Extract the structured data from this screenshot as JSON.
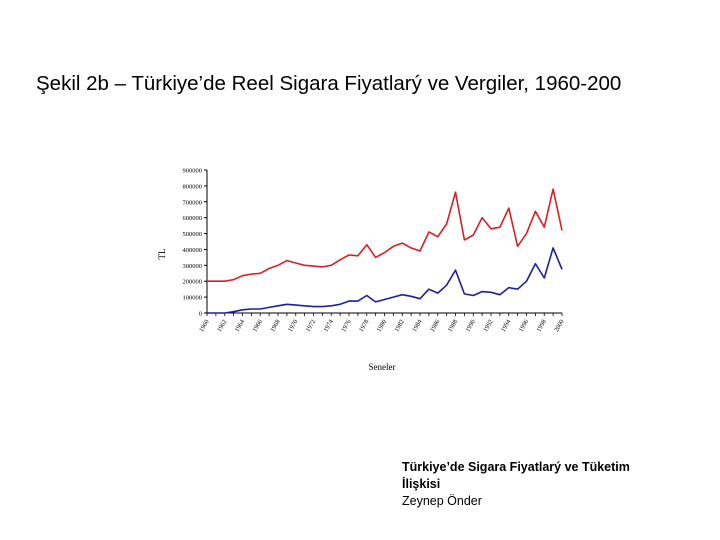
{
  "slide": {
    "title": "Şekil 2b – Türkiye’de Reel Sigara Fiyatlarý ve Vergiler, 1960-200"
  },
  "footer": {
    "line1": "Türkiye’de Sigara Fiyatlarý ve Tüketim",
    "line2": "İlişkisi",
    "author": "Zeynep Önder"
  },
  "colors": {
    "price_series": "#d42027",
    "tax_series": "#1f1f99",
    "axis": "#000000"
  },
  "chart_data": {
    "type": "line",
    "ylabel": "TL",
    "xlabel": "Seneler",
    "ylim": [
      0,
      900000
    ],
    "y_ticks": [
      0,
      100000,
      200000,
      300000,
      400000,
      500000,
      600000,
      700000,
      800000,
      900000
    ],
    "y_tick_labels": [
      "0",
      "100000",
      "200000",
      "300000",
      "400000",
      "500000",
      "600000",
      "700000",
      "800000",
      "900000"
    ],
    "xlim": [
      1960,
      2000
    ],
    "x_tick_labels": [
      "1960",
      "1962",
      "1964",
      "1966",
      "1968",
      "1970",
      "1972",
      "1974",
      "1976",
      "1978",
      "1980",
      "1982",
      "1984",
      "1986",
      "1988",
      "1990",
      "1992",
      "1994",
      "1996",
      "1998",
      "2000"
    ],
    "grid": false,
    "legend": "none",
    "x": [
      1960,
      1961,
      1962,
      1963,
      1964,
      1965,
      1966,
      1967,
      1968,
      1969,
      1970,
      1971,
      1972,
      1973,
      1974,
      1975,
      1976,
      1977,
      1978,
      1979,
      1980,
      1981,
      1982,
      1983,
      1984,
      1985,
      1986,
      1987,
      1988,
      1989,
      1990,
      1991,
      1992,
      1993,
      1994,
      1995,
      1996,
      1997,
      1998,
      1999,
      2000
    ],
    "series": [
      {
        "color_key": "price_series",
        "values": [
          200000,
          200000,
          200000,
          210000,
          235000,
          245000,
          250000,
          280000,
          300000,
          330000,
          315000,
          300000,
          295000,
          290000,
          300000,
          335000,
          365000,
          360000,
          430000,
          350000,
          380000,
          420000,
          440000,
          410000,
          390000,
          510000,
          480000,
          560000,
          760000,
          460000,
          490000,
          600000,
          530000,
          540000,
          660000,
          420000,
          500000,
          640000,
          540000,
          780000,
          520000
        ]
      },
      {
        "color_key": "tax_series",
        "values": [
          0,
          0,
          0,
          8000,
          20000,
          25000,
          25000,
          35000,
          45000,
          55000,
          50000,
          45000,
          40000,
          40000,
          45000,
          55000,
          75000,
          75000,
          110000,
          70000,
          85000,
          100000,
          115000,
          105000,
          90000,
          150000,
          125000,
          175000,
          270000,
          120000,
          110000,
          135000,
          130000,
          115000,
          160000,
          150000,
          200000,
          310000,
          220000,
          410000,
          275000
        ]
      }
    ]
  }
}
